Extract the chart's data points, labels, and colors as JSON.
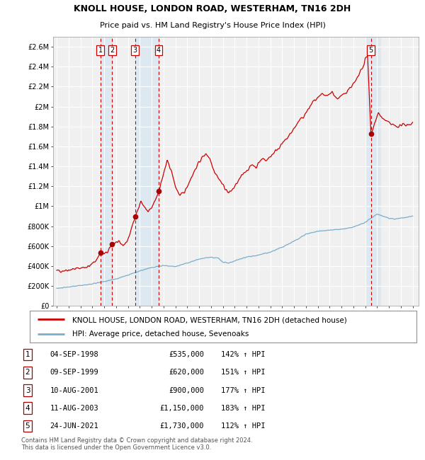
{
  "title": "KNOLL HOUSE, LONDON ROAD, WESTERHAM, TN16 2DH",
  "subtitle": "Price paid vs. HM Land Registry's House Price Index (HPI)",
  "legend_line1": "KNOLL HOUSE, LONDON ROAD, WESTERHAM, TN16 2DH (detached house)",
  "legend_line2": "HPI: Average price, detached house, Sevenoaks",
  "footer": "Contains HM Land Registry data © Crown copyright and database right 2024.\nThis data is licensed under the Open Government Licence v3.0.",
  "ylim": [
    0,
    2700000
  ],
  "yticks": [
    0,
    200000,
    400000,
    600000,
    800000,
    1000000,
    1200000,
    1400000,
    1600000,
    1800000,
    2000000,
    2200000,
    2400000,
    2600000
  ],
  "ytick_labels": [
    "£0",
    "£200K",
    "£400K",
    "£600K",
    "£800K",
    "£1M",
    "£1.2M",
    "£1.4M",
    "£1.6M",
    "£1.8M",
    "£2M",
    "£2.2M",
    "£2.4M",
    "£2.6M"
  ],
  "xlim_start": 1994.7,
  "xlim_end": 2025.5,
  "sales": [
    {
      "num": 1,
      "year": 1998.68,
      "price": 535000,
      "date": "04-SEP-1998",
      "price_str": "£535,000",
      "pct": "142%",
      "dir": "↑"
    },
    {
      "num": 2,
      "year": 1999.68,
      "price": 620000,
      "date": "09-SEP-1999",
      "price_str": "£620,000",
      "pct": "151%",
      "dir": "↑"
    },
    {
      "num": 3,
      "year": 2001.6,
      "price": 900000,
      "date": "10-AUG-2001",
      "price_str": "£900,000",
      "pct": "177%",
      "dir": "↑"
    },
    {
      "num": 4,
      "year": 2003.6,
      "price": 1150000,
      "date": "11-AUG-2003",
      "price_str": "£1,150,000",
      "pct": "183%",
      "dir": "↑"
    },
    {
      "num": 5,
      "year": 2021.48,
      "price": 1730000,
      "date": "24-JUN-2021",
      "price_str": "£1,730,000",
      "pct": "112%",
      "dir": "↑"
    }
  ],
  "red_line_color": "#cc0000",
  "blue_line_color": "#7aadcc",
  "sale_marker_color": "#aa0000",
  "vline_color": "#cc0000",
  "plot_bg_color": "#f0f0f0",
  "grid_color": "#ffffff",
  "shade_color": "#dce8f0",
  "shade_regions": [
    {
      "start": 1998.68,
      "end": 1999.68
    },
    {
      "start": 2001.6,
      "end": 2003.6
    },
    {
      "start": 2021.0,
      "end": 2022.3
    }
  ]
}
